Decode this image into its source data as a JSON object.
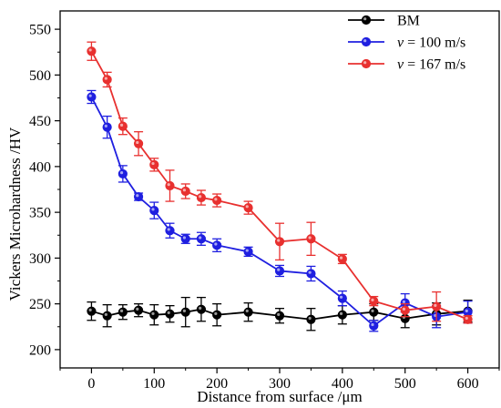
{
  "chart_data": {
    "type": "line",
    "title": "",
    "xlabel": "Distance from surface /μm",
    "ylabel": "Vickers Microhardness /HV",
    "xlim": [
      -50,
      650
    ],
    "ylim": [
      180,
      570
    ],
    "xticks": [
      0,
      100,
      200,
      300,
      400,
      500,
      600
    ],
    "yticks": [
      200,
      250,
      300,
      350,
      400,
      450,
      500,
      550
    ],
    "grid": false,
    "legend_position": "top-right",
    "series": [
      {
        "name": "BM",
        "color": "#000000",
        "x": [
          0,
          25,
          50,
          75,
          100,
          125,
          150,
          175,
          200,
          250,
          300,
          350,
          400,
          450,
          500,
          550,
          600
        ],
        "y": [
          242,
          237,
          241,
          243,
          238,
          239,
          241,
          244,
          238,
          241,
          237,
          233,
          238,
          241,
          234,
          239,
          242
        ],
        "err": [
          10,
          12,
          8,
          7,
          11,
          9,
          16,
          13,
          12,
          10,
          8,
          12,
          10,
          9,
          10,
          12,
          12
        ]
      },
      {
        "name": "v = 100 m/s",
        "color": "#1f1fe0",
        "x": [
          0,
          25,
          50,
          75,
          100,
          125,
          150,
          175,
          200,
          250,
          300,
          350,
          400,
          450,
          500,
          550,
          600
        ],
        "y": [
          476,
          443,
          392,
          367,
          352,
          330,
          321,
          321,
          314,
          307,
          286,
          283,
          256,
          226,
          251,
          236,
          241
        ],
        "err": [
          7,
          12,
          9,
          4,
          9,
          8,
          5,
          7,
          7,
          5,
          6,
          8,
          8,
          6,
          10,
          12,
          12
        ]
      },
      {
        "name": "v = 167 m/s",
        "color": "#e8302f",
        "x": [
          0,
          25,
          50,
          75,
          100,
          125,
          150,
          175,
          200,
          250,
          300,
          350,
          400,
          450,
          500,
          550,
          600
        ],
        "y": [
          526,
          495,
          444,
          425,
          402,
          379,
          373,
          366,
          363,
          355,
          318,
          321,
          299,
          253,
          243,
          247,
          233
        ],
        "err": [
          10,
          8,
          9,
          13,
          7,
          17,
          8,
          8,
          7,
          7,
          20,
          18,
          5,
          5,
          7,
          16,
          4
        ]
      }
    ]
  }
}
